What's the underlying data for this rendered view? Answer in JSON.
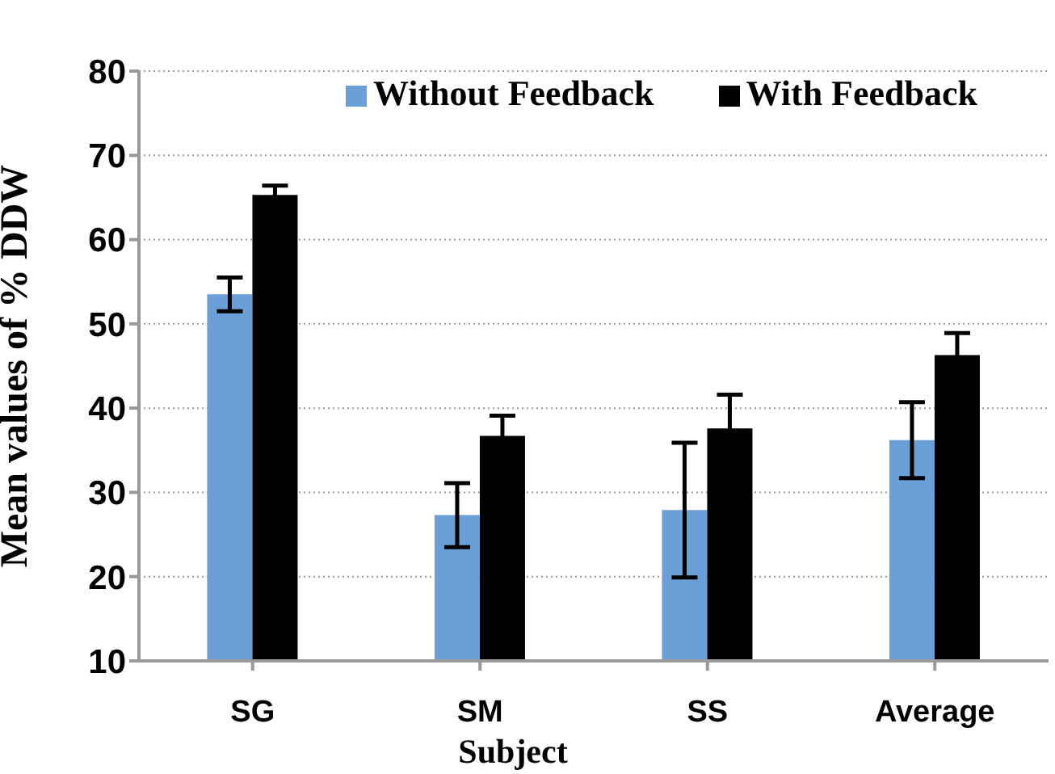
{
  "chart_data": {
    "type": "bar",
    "xlabel": "Subject",
    "ylabel": "Mean values of % DDW",
    "categories": [
      "SG",
      "SM",
      "SS",
      "Average"
    ],
    "series": [
      {
        "name": "Without Feedback",
        "color": "#6a9fd8",
        "values": [
          53.5,
          27.3,
          27.9,
          36.2
        ],
        "errors": [
          2,
          3.8,
          8,
          4.5
        ]
      },
      {
        "name": "With Feedback",
        "color": "#000000",
        "values": [
          65.3,
          36.7,
          37.6,
          46.3
        ],
        "errors": [
          1.1,
          2.4,
          4,
          2.6
        ]
      }
    ],
    "ylim": [
      10,
      80
    ],
    "yticks": [
      10,
      20,
      30,
      40,
      50,
      60,
      70,
      80
    ],
    "grid": "y",
    "legend": "top right"
  }
}
